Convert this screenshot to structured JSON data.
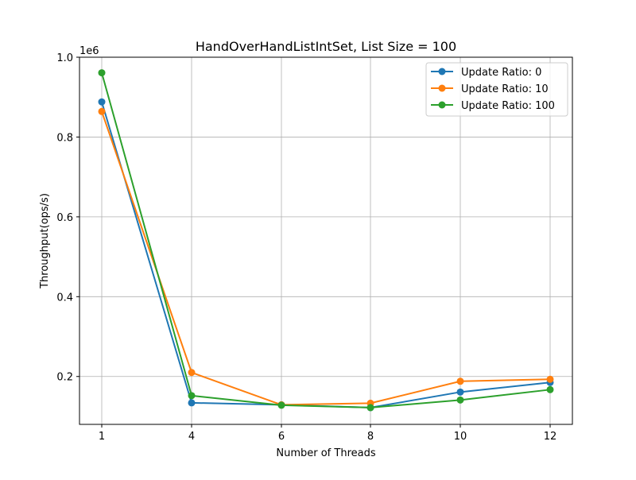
{
  "chart_data": {
    "type": "line",
    "title": "HandOverHandListIntSet, List Size = 100",
    "xlabel": "Number of Threads",
    "ylabel": "Throughput(ops/s)",
    "y_multiplier_label": "1e6",
    "categories": [
      "1",
      "4",
      "6",
      "8",
      "10",
      "12"
    ],
    "y_ticks": [
      0.2,
      0.4,
      0.6,
      0.8,
      1.0
    ],
    "y_tick_labels": [
      "0.2",
      "0.4",
      "0.6",
      "0.8",
      "1.0"
    ],
    "ylim": [
      0.08,
      1.0
    ],
    "grid": true,
    "legend_position": "top-right",
    "series": [
      {
        "name": "Update Ratio: 0",
        "color": "#1f77b4",
        "values": [
          0.888,
          0.134,
          0.129,
          0.122,
          0.161,
          0.185
        ]
      },
      {
        "name": "Update Ratio: 10",
        "color": "#ff7f0e",
        "values": [
          0.864,
          0.21,
          0.129,
          0.133,
          0.188,
          0.193
        ]
      },
      {
        "name": "Update Ratio: 100",
        "color": "#2ca02c",
        "values": [
          0.961,
          0.152,
          0.128,
          0.122,
          0.141,
          0.167
        ]
      }
    ]
  }
}
